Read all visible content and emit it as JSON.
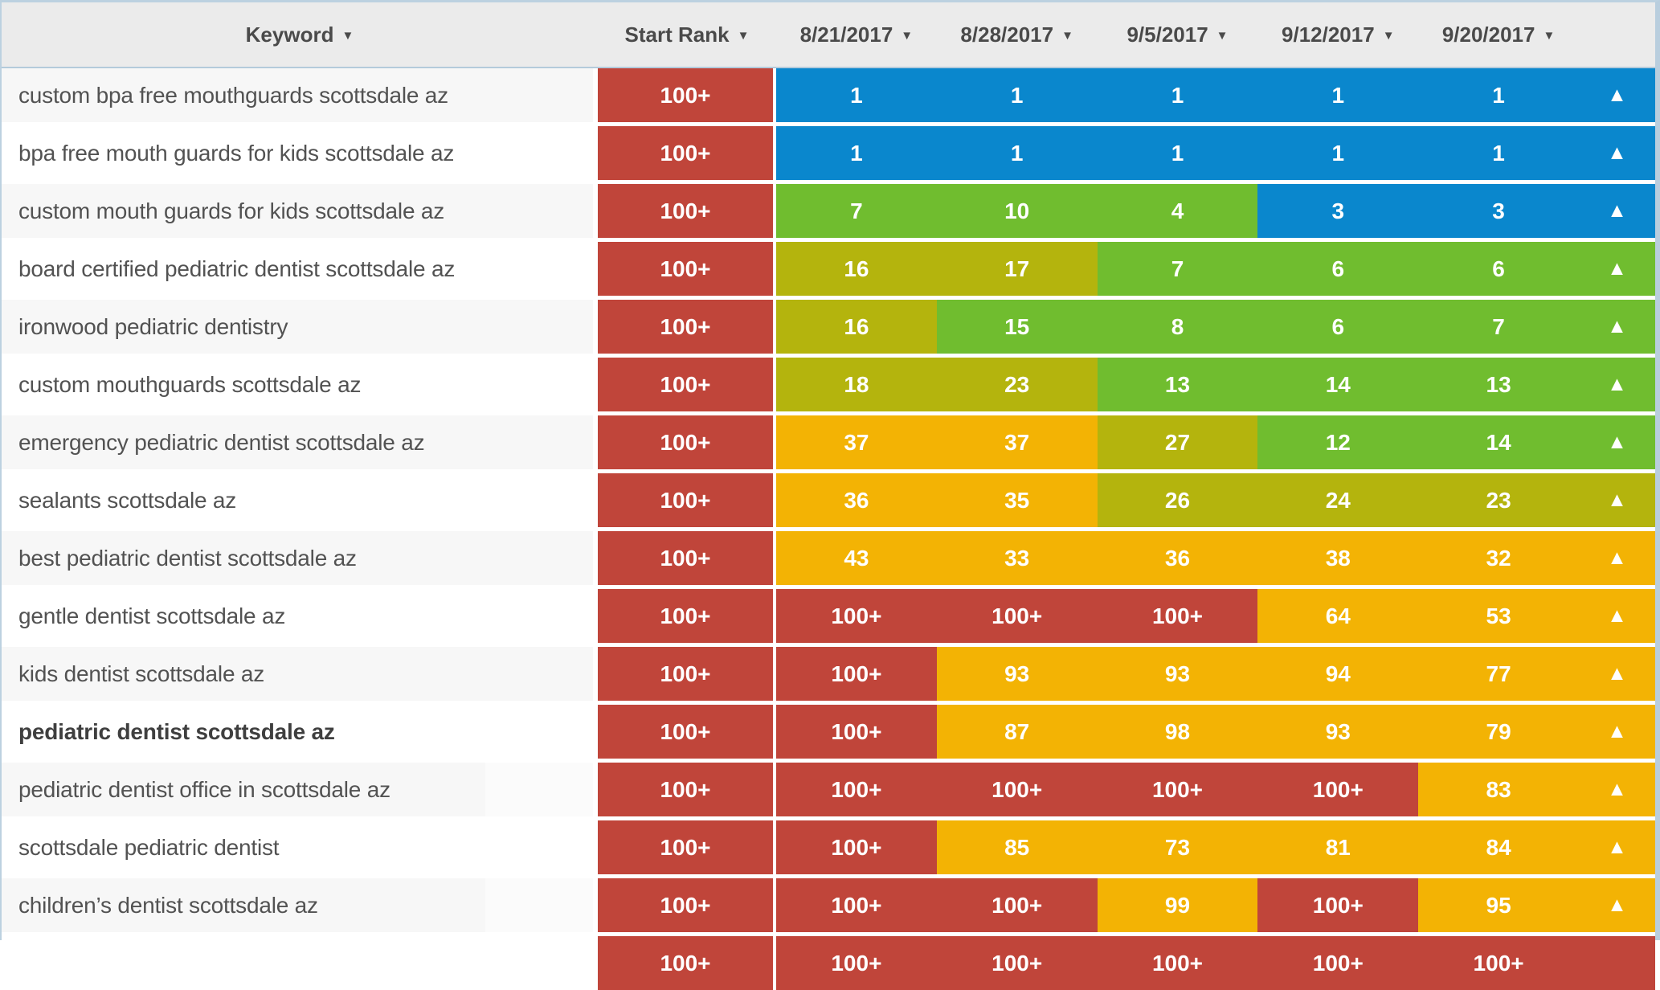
{
  "sort_icon": "▼",
  "trend_icon": "▲",
  "header": {
    "columns": [
      {
        "label": "Keyword"
      },
      {
        "label": "Start Rank"
      },
      {
        "label": "8/21/2017"
      },
      {
        "label": "8/28/2017"
      },
      {
        "label": "9/5/2017"
      },
      {
        "label": "9/12/2017"
      },
      {
        "label": "9/20/2017"
      }
    ]
  },
  "colors": {
    "rank_top3_blue": "#0a87cd",
    "rank_good_green": "#70bd2f",
    "rank_mid_olive": "#b4b40d",
    "rank_low_orange": "#f3b304",
    "rank_none_red": "#c0453a",
    "header_bg": "#ebebeb",
    "row_alt_bg": "#f7f7f7",
    "frame_border": "#b9cede"
  },
  "rank_color_rules": {
    "blue_max": 3,
    "green_max": 15,
    "olive_max": 30,
    "orange_max": 100,
    "red_value": "100+"
  },
  "rows": [
    {
      "keyword": "custom bpa free mouthguards scottsdale az",
      "start_rank": "100+",
      "ranks": [
        "1",
        "1",
        "1",
        "1",
        "1"
      ],
      "bold": false,
      "short_bg": false,
      "partial": false
    },
    {
      "keyword": "bpa free mouth guards for kids scottsdale az",
      "start_rank": "100+",
      "ranks": [
        "1",
        "1",
        "1",
        "1",
        "1"
      ],
      "bold": false,
      "short_bg": false,
      "partial": false
    },
    {
      "keyword": "custom mouth guards for kids scottsdale az",
      "start_rank": "100+",
      "ranks": [
        "7",
        "10",
        "4",
        "3",
        "3"
      ],
      "bold": false,
      "short_bg": false,
      "partial": false
    },
    {
      "keyword": "board certified pediatric dentist scottsdale az",
      "start_rank": "100+",
      "ranks": [
        "16",
        "17",
        "7",
        "6",
        "6"
      ],
      "bold": false,
      "short_bg": false,
      "partial": false
    },
    {
      "keyword": "ironwood pediatric dentistry",
      "start_rank": "100+",
      "ranks": [
        "16",
        "15",
        "8",
        "6",
        "7"
      ],
      "bold": false,
      "short_bg": false,
      "partial": false
    },
    {
      "keyword": "custom mouthguards scottsdale az",
      "start_rank": "100+",
      "ranks": [
        "18",
        "23",
        "13",
        "14",
        "13"
      ],
      "bold": false,
      "short_bg": false,
      "partial": false
    },
    {
      "keyword": "emergency pediatric dentist scottsdale az",
      "start_rank": "100+",
      "ranks": [
        "37",
        "37",
        "27",
        "12",
        "14"
      ],
      "bold": false,
      "short_bg": false,
      "partial": false
    },
    {
      "keyword": "sealants scottsdale az",
      "start_rank": "100+",
      "ranks": [
        "36",
        "35",
        "26",
        "24",
        "23"
      ],
      "bold": false,
      "short_bg": false,
      "partial": false
    },
    {
      "keyword": "best pediatric dentist scottsdale az",
      "start_rank": "100+",
      "ranks": [
        "43",
        "33",
        "36",
        "38",
        "32"
      ],
      "bold": false,
      "short_bg": false,
      "partial": false
    },
    {
      "keyword": "gentle dentist scottsdale az",
      "start_rank": "100+",
      "ranks": [
        "100+",
        "100+",
        "100+",
        "64",
        "53"
      ],
      "bold": false,
      "short_bg": false,
      "partial": false
    },
    {
      "keyword": "kids dentist scottsdale az",
      "start_rank": "100+",
      "ranks": [
        "100+",
        "93",
        "93",
        "94",
        "77"
      ],
      "bold": false,
      "short_bg": false,
      "partial": false
    },
    {
      "keyword": "pediatric dentist scottsdale az",
      "start_rank": "100+",
      "ranks": [
        "100+",
        "87",
        "98",
        "93",
        "79"
      ],
      "bold": true,
      "short_bg": false,
      "partial": false
    },
    {
      "keyword": "pediatric dentist office in scottsdale az",
      "start_rank": "100+",
      "ranks": [
        "100+",
        "100+",
        "100+",
        "100+",
        "83"
      ],
      "bold": false,
      "short_bg": true,
      "partial": false
    },
    {
      "keyword": "scottsdale pediatric dentist",
      "start_rank": "100+",
      "ranks": [
        "100+",
        "85",
        "73",
        "81",
        "84"
      ],
      "bold": false,
      "short_bg": false,
      "partial": false
    },
    {
      "keyword": "children’s dentist scottsdale az",
      "start_rank": "100+",
      "ranks": [
        "100+",
        "100+",
        "99",
        "100+",
        "95"
      ],
      "bold": false,
      "short_bg": true,
      "partial": false
    },
    {
      "keyword": "",
      "start_rank": "100+",
      "ranks": [
        "100+",
        "100+",
        "100+",
        "100+",
        "100+"
      ],
      "bold": false,
      "short_bg": false,
      "partial": true
    }
  ]
}
